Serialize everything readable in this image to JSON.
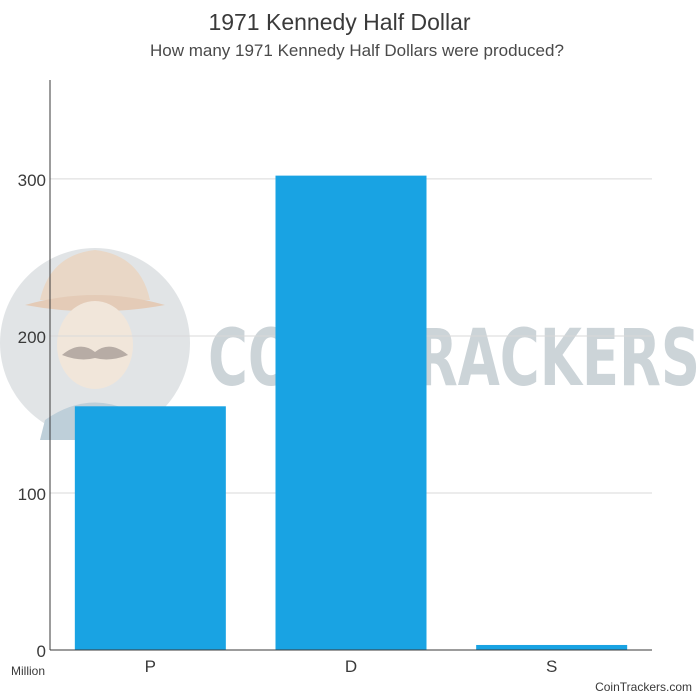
{
  "chart_data": {
    "type": "bar",
    "title": "1971 Kennedy Half Dollar",
    "subtitle": "How many 1971 Kennedy Half Dollars were produced?",
    "categories": [
      "P",
      "D",
      "S"
    ],
    "values": [
      155.2,
      302.1,
      3.2
    ],
    "unit_label": "Million",
    "ylim": [
      0,
      363
    ],
    "yticks": [
      0,
      100,
      200,
      300
    ],
    "grid": true,
    "bar_color": "#19a3e3"
  },
  "watermark": {
    "text": "COIN TRACKERS",
    "color": "#bcc6cc"
  },
  "footer": {
    "credit": "CoinTrackers.com"
  }
}
